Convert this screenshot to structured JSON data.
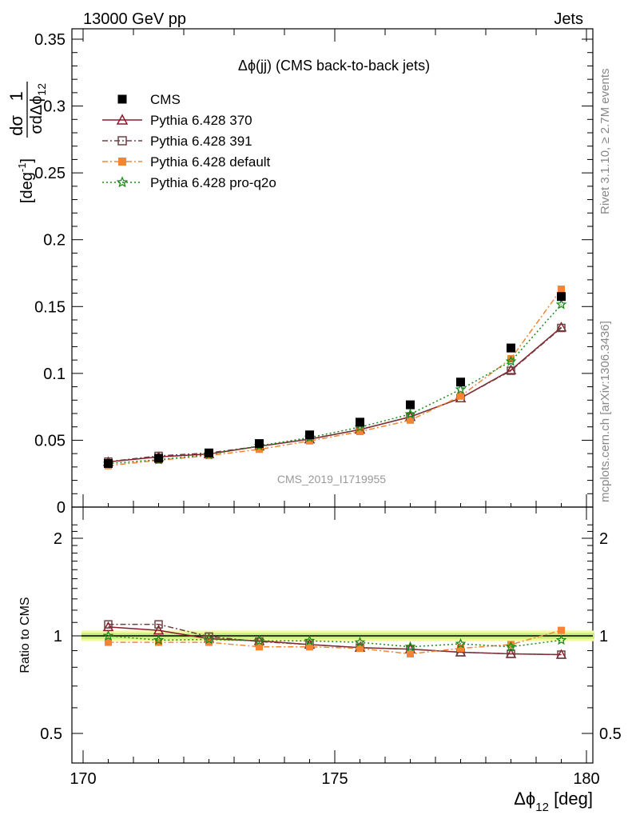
{
  "header": {
    "left": "13000 GeV pp",
    "right": "Jets"
  },
  "side_text": {
    "rivet": "Rivet 3.1.10, ≥ 2.7M events",
    "mcplots": "mcplots.cern.ch [arXiv:1306.3436]"
  },
  "chart_data": {
    "type": "scatter",
    "title": "Δϕ(jj) (CMS back-to-back jets)",
    "watermark": "CMS_2019_I1719955",
    "x": [
      170.5,
      171.5,
      172.5,
      173.5,
      174.5,
      175.5,
      176.5,
      177.5,
      178.5,
      179.5
    ],
    "xlabel": "Δϕ12 [deg]",
    "xlim": [
      170,
      180
    ],
    "xticks": [
      "170",
      "175",
      "180"
    ],
    "main": {
      "ylabel": "1/σ dσ/dΔϕ12 [deg-1]",
      "ylim": [
        0,
        0.36
      ],
      "yticks": [
        "0",
        "0.05",
        "0.1",
        "0.15",
        "0.2",
        "0.25",
        "0.3",
        "0.35"
      ]
    },
    "ratio": {
      "ylabel": "Ratio to CMS",
      "ylim": [
        0.38,
        2.3
      ],
      "yticks": [
        "0.5",
        "1",
        "2"
      ],
      "band": [
        0.985,
        1.015
      ]
    },
    "legend": {
      "placement": "top-left"
    },
    "series": [
      {
        "name": "CMS",
        "color": "#000000",
        "marker": "filled-square",
        "line": "none",
        "values": [
          0.0326,
          0.0365,
          0.0405,
          0.0475,
          0.054,
          0.0635,
          0.0765,
          0.0935,
          0.119,
          0.1575
        ],
        "ratio": [
          1.0,
          1.0,
          1.0,
          1.0,
          1.0,
          1.0,
          1.0,
          1.0,
          1.0,
          1.0
        ]
      },
      {
        "name": "Pythia 6.428 370",
        "color": "#8b1a2b",
        "marker": "open-triangle",
        "line": "solid",
        "values": [
          0.0338,
          0.0375,
          0.0397,
          0.0455,
          0.0508,
          0.058,
          0.0675,
          0.0815,
          0.1025,
          0.1345
        ],
        "ratio": [
          1.065,
          1.04,
          0.98,
          0.965,
          0.94,
          0.92,
          0.91,
          0.89,
          0.88,
          0.875
        ]
      },
      {
        "name": "Pythia 6.428 391",
        "color": "#6b4040",
        "marker": "open-square",
        "line": "dash-dot",
        "values": [
          0.034,
          0.0383,
          0.0405,
          0.0455,
          0.051,
          0.058,
          0.0675,
          0.0815,
          0.102,
          0.134
        ],
        "ratio": [
          1.085,
          1.085,
          0.995,
          0.96,
          0.94,
          0.92,
          0.91,
          0.89,
          0.88,
          0.875
        ]
      },
      {
        "name": "Pythia 6.428 default",
        "color": "#f58535",
        "marker": "filled-square",
        "line": "dash-dot",
        "values": [
          0.031,
          0.035,
          0.0385,
          0.0432,
          0.0495,
          0.0565,
          0.065,
          0.083,
          0.111,
          0.163
        ],
        "ratio": [
          0.955,
          0.955,
          0.955,
          0.925,
          0.925,
          0.915,
          0.88,
          0.915,
          0.94,
          1.04
        ]
      },
      {
        "name": "Pythia 6.428 pro-q2o",
        "color": "#1a8a1a",
        "marker": "open-star",
        "line": "dotted",
        "values": [
          0.0325,
          0.0355,
          0.0392,
          0.0458,
          0.052,
          0.0598,
          0.0695,
          0.088,
          0.109,
          0.1515
        ],
        "ratio": [
          1.0,
          0.97,
          0.975,
          0.965,
          0.965,
          0.955,
          0.925,
          0.945,
          0.925,
          0.97
        ]
      }
    ]
  }
}
